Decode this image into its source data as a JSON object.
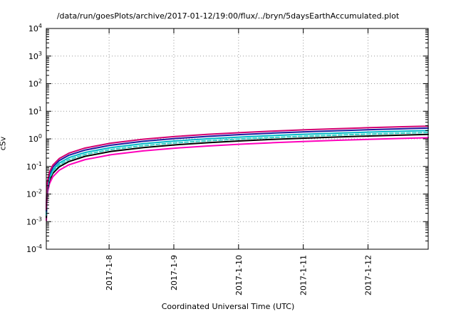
{
  "chart_data": {
    "type": "line",
    "title": "/data/run/goesPlots/archive/2017-01-12/19:00/flux/../bryn/5daysEarthAccumulated.plot",
    "xlabel": "Coordinated Universal Time (UTC)",
    "ylabel": "cSv",
    "y_scale": "log",
    "ylim": [
      0.0001,
      10000
    ],
    "y_tick_exponents": [
      -4,
      -3,
      -2,
      -1,
      0,
      1,
      2,
      3,
      4
    ],
    "x_range_days": [
      0,
      5.9
    ],
    "x_ticks": [
      {
        "label": "2017-1-8",
        "t": 0.97
      },
      {
        "label": "2017-1-9",
        "t": 1.97
      },
      {
        "label": "2017-1-10",
        "t": 2.97
      },
      {
        "label": "2017-1-11",
        "t": 3.97
      },
      {
        "label": "2017-1-12",
        "t": 4.97
      }
    ],
    "grid": true,
    "legend": "none",
    "t_days": [
      0.001,
      0.005,
      0.01,
      0.02,
      0.05,
      0.1,
      0.2,
      0.35,
      0.6,
      1.0,
      1.5,
      2.0,
      2.5,
      3.0,
      3.5,
      4.0,
      4.5,
      5.0,
      5.5,
      5.9
    ],
    "series": [
      {
        "name": "accumulated-curve-magenta-bottom",
        "color": "#ff00bb",
        "width": 2,
        "dash": "",
        "values": [
          0.0011,
          0.0039,
          0.0067,
          0.0117,
          0.0242,
          0.042,
          0.073,
          0.115,
          0.177,
          0.266,
          0.367,
          0.463,
          0.553,
          0.64,
          0.725,
          0.806,
          0.886,
          0.964,
          1.04,
          1.1
        ]
      },
      {
        "name": "accumulated-curve-black",
        "color": "#000000",
        "width": 2,
        "dash": "",
        "values": [
          0.0014,
          0.0051,
          0.0088,
          0.0154,
          0.0319,
          0.056,
          0.097,
          0.151,
          0.233,
          0.35,
          0.484,
          0.61,
          0.729,
          0.844,
          0.956,
          1.063,
          1.167,
          1.27,
          1.37,
          1.45
        ]
      },
      {
        "name": "accumulated-curve-teal-dashed",
        "color": "#35d0c5",
        "width": 2,
        "dash": "5,3",
        "values": [
          0.0017,
          0.006,
          0.0104,
          0.018,
          0.0374,
          0.065,
          0.113,
          0.177,
          0.273,
          0.411,
          0.568,
          0.716,
          0.855,
          0.989,
          1.12,
          1.246,
          1.369,
          1.489,
          1.607,
          1.7
        ]
      },
      {
        "name": "accumulated-curve-cyan",
        "color": "#00b8c8",
        "width": 2,
        "dash": "",
        "values": [
          0.0019,
          0.007,
          0.0122,
          0.0212,
          0.044,
          0.077,
          0.133,
          0.209,
          0.321,
          0.483,
          0.668,
          0.842,
          1.006,
          1.164,
          1.318,
          1.466,
          1.61,
          1.752,
          1.89,
          2.0
        ]
      },
      {
        "name": "accumulated-curve-navy",
        "color": "#1b1b9e",
        "width": 2,
        "dash": "",
        "values": [
          0.0024,
          0.0086,
          0.0149,
          0.026,
          0.0539,
          0.094,
          0.163,
          0.256,
          0.393,
          0.592,
          0.818,
          1.031,
          1.232,
          1.426,
          1.615,
          1.796,
          1.972,
          2.146,
          2.315,
          2.45
        ]
      },
      {
        "name": "accumulated-curve-magenta-top",
        "color": "#d40070",
        "width": 2,
        "dash": "",
        "values": [
          0.0028,
          0.0102,
          0.0177,
          0.0307,
          0.0638,
          0.111,
          0.193,
          0.303,
          0.466,
          0.701,
          0.969,
          1.221,
          1.459,
          1.688,
          1.911,
          2.126,
          2.335,
          2.54,
          2.741,
          2.9
        ]
      }
    ]
  }
}
